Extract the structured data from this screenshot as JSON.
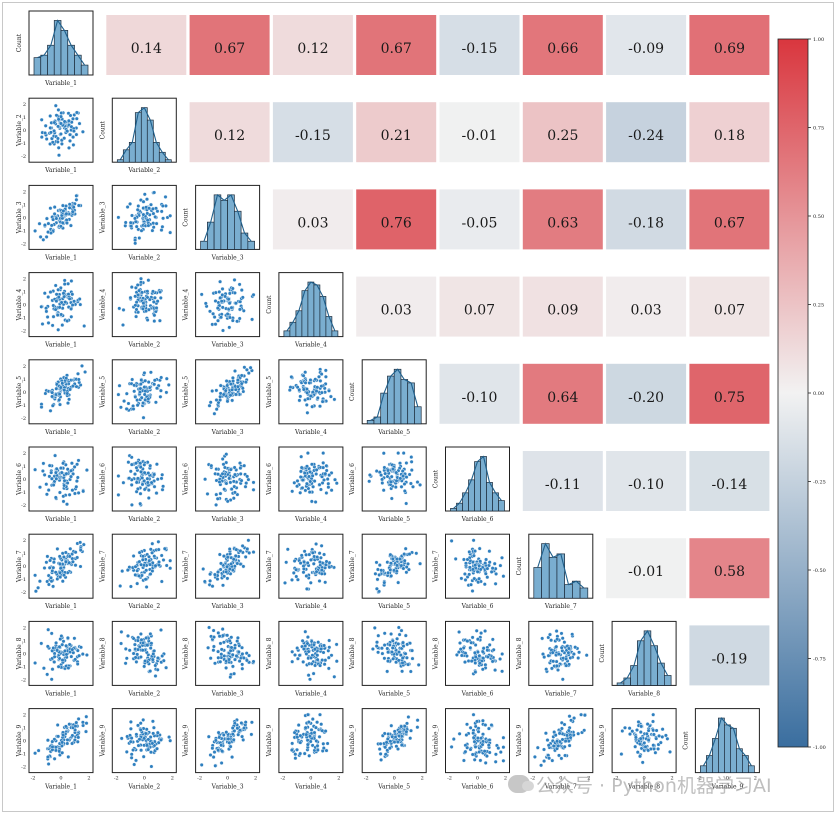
{
  "chart_data": {
    "type": "pairplot_correlation_matrix",
    "variables": [
      "Variable_1",
      "Variable_2",
      "Variable_3",
      "Variable_4",
      "Variable_5",
      "Variable_6",
      "Variable_7",
      "Variable_8",
      "Variable_9"
    ],
    "correlation_upper": [
      [
        null,
        0.14,
        0.67,
        0.12,
        0.67,
        -0.15,
        0.66,
        -0.09,
        0.69
      ],
      [
        null,
        null,
        0.12,
        -0.15,
        0.21,
        -0.01,
        0.25,
        -0.24,
        0.18
      ],
      [
        null,
        null,
        null,
        0.03,
        0.76,
        -0.05,
        0.63,
        -0.18,
        0.67
      ],
      [
        null,
        null,
        null,
        null,
        0.03,
        0.07,
        0.09,
        0.03,
        0.07
      ],
      [
        null,
        null,
        null,
        null,
        null,
        -0.1,
        0.64,
        -0.2,
        0.75
      ],
      [
        null,
        null,
        null,
        null,
        null,
        null,
        -0.11,
        -0.1,
        -0.14
      ],
      [
        null,
        null,
        null,
        null,
        null,
        null,
        null,
        -0.01,
        0.58
      ],
      [
        null,
        null,
        null,
        null,
        null,
        null,
        null,
        null,
        -0.19
      ]
    ],
    "correlation_labels": [
      [
        null,
        "0.14",
        "0.67",
        "0.12",
        "0.67",
        "-0.15",
        "0.66",
        "-0.09",
        "0.69"
      ],
      [
        null,
        null,
        "0.12",
        "-0.15",
        "0.21",
        "-0.01",
        "0.25",
        "-0.24",
        "0.18"
      ],
      [
        null,
        null,
        null,
        "0.03",
        "0.76",
        "-0.05",
        "0.63",
        "-0.18",
        "0.67"
      ],
      [
        null,
        null,
        null,
        null,
        "0.03",
        "0.07",
        "0.09",
        "0.03",
        "0.07"
      ],
      [
        null,
        null,
        null,
        null,
        null,
        "-0.10",
        "0.64",
        "-0.20",
        "0.75"
      ],
      [
        null,
        null,
        null,
        null,
        null,
        null,
        "-0.11",
        "-0.10",
        "-0.14"
      ],
      [
        null,
        null,
        null,
        null,
        null,
        null,
        null,
        "-0.01",
        "0.58"
      ],
      [
        null,
        null,
        null,
        null,
        null,
        null,
        null,
        null,
        "-0.19"
      ]
    ],
    "diagonal": {
      "type": "histogram_kde",
      "ylabel": "Count",
      "color": "#7aaed0",
      "edge_color": "#1b2a3a",
      "line_color": "#1f5f8b",
      "counts": [
        [
          7,
          8,
          12,
          22,
          18,
          12,
          8,
          4
        ],
        [
          1,
          5,
          8,
          20,
          22,
          17,
          8,
          4,
          1
        ],
        [
          3,
          10,
          20,
          18,
          20,
          14,
          6,
          3
        ],
        [
          2,
          5,
          9,
          16,
          19,
          18,
          14,
          7,
          2
        ],
        [
          1,
          2,
          9,
          14,
          16,
          13,
          12,
          5
        ],
        [
          1,
          3,
          7,
          12,
          19,
          21,
          11,
          7,
          4
        ],
        [
          9,
          16,
          12,
          13,
          4,
          5,
          3
        ],
        [
          1,
          3,
          8,
          18,
          22,
          16,
          9,
          4
        ],
        [
          2,
          5,
          10,
          16,
          14,
          13,
          7,
          5,
          2
        ]
      ],
      "x_range": [
        -2.8,
        2.6
      ]
    },
    "lower": {
      "type": "scatter",
      "color": "#2e7fbf",
      "edge_color": "#ffffff",
      "n_points": 100
    },
    "x_ticks": [
      "-2",
      "0",
      "2"
    ],
    "y_ticks": [
      "-2",
      "-1",
      "0",
      "1",
      "2"
    ],
    "colorbar": {
      "cmap": [
        "#3a6e9f",
        "#f2f2f2",
        "#d9363e"
      ],
      "vmin": -1.0,
      "vmax": 1.0,
      "tick_values": [
        1.0,
        0.75,
        0.5,
        0.25,
        0.0,
        -0.25,
        -0.5,
        -0.75,
        -1.0
      ],
      "tick_labels": [
        "1.00",
        "0.75",
        "0.50",
        "0.25",
        "0.00",
        "-0.25",
        "-0.50",
        "-0.75",
        "-1.00"
      ]
    }
  },
  "watermark": {
    "icon": "wechat-icon",
    "text": "公众号 · Python机器学习AI"
  }
}
